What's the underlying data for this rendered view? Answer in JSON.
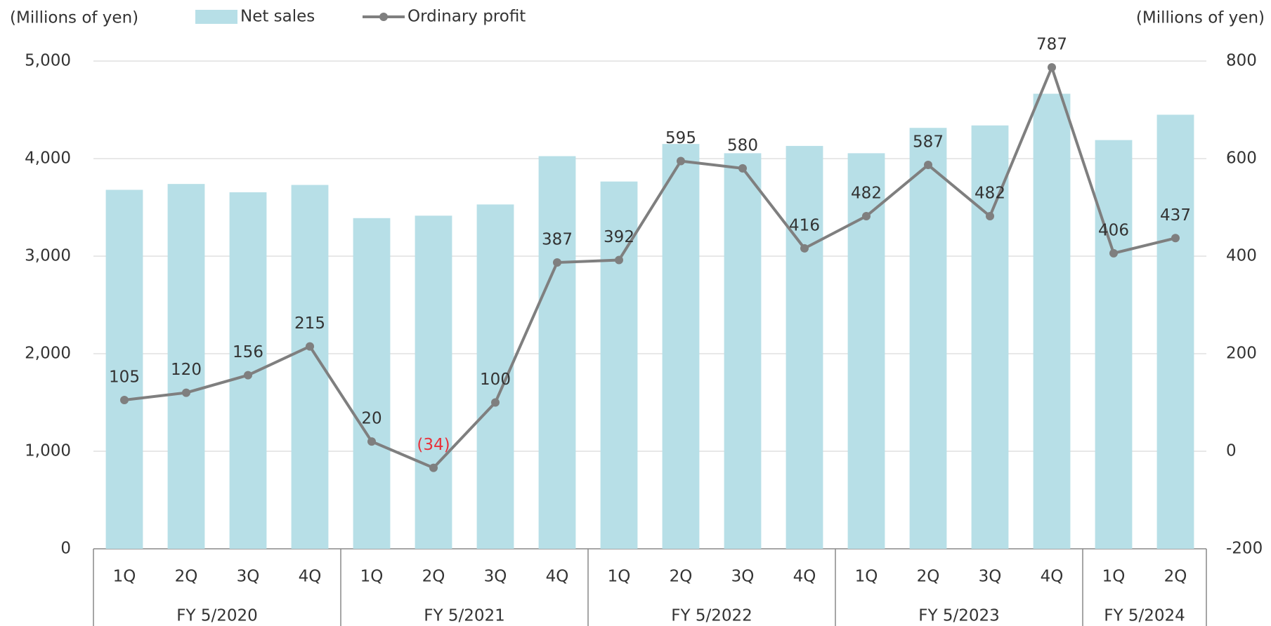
{
  "chart_data": {
    "type": "bar-line",
    "y_label": "(Millions of yen)",
    "y2_label": "(Millions of yen)",
    "categories": [
      "1Q",
      "2Q",
      "3Q",
      "4Q",
      "1Q",
      "2Q",
      "3Q",
      "4Q",
      "1Q",
      "2Q",
      "3Q",
      "4Q",
      "1Q",
      "2Q",
      "3Q",
      "4Q",
      "1Q",
      "2Q"
    ],
    "groups": [
      {
        "name": "FY 5/2020",
        "count": 4
      },
      {
        "name": "FY 5/2021",
        "count": 4
      },
      {
        "name": "FY 5/2022",
        "count": 4
      },
      {
        "name": "FY 5/2023",
        "count": 4
      },
      {
        "name": "FY 5/2024",
        "count": 2
      }
    ],
    "series": [
      {
        "name": "Net sales",
        "type": "bar",
        "color": "#b7dfe7",
        "values": [
          3680,
          3740,
          3655,
          3730,
          3390,
          3415,
          3530,
          4025,
          3765,
          4150,
          4055,
          4130,
          4055,
          4315,
          4340,
          4665,
          4190,
          4450
        ]
      },
      {
        "name": "Ordinary profit",
        "type": "line",
        "axis": "y2",
        "color": "#7f7f7f",
        "values": [
          105,
          120,
          156,
          215,
          20,
          -34,
          100,
          387,
          392,
          595,
          580,
          416,
          482,
          587,
          482,
          787,
          406,
          437
        ],
        "value_labels": [
          "105",
          "120",
          "156",
          "215",
          "20",
          "(34)",
          "100",
          "387",
          "392",
          "595",
          "580",
          "416",
          "482",
          "587",
          "482",
          "787",
          "406",
          "437"
        ],
        "negative_label_color": "#e8323c"
      }
    ],
    "ylim": [
      0,
      5000
    ],
    "yticks": [
      0,
      {
        "value": 1000,
        "label": "1,000"
      },
      {
        "value": 2000,
        "label": "2,000"
      },
      {
        "value": 3000,
        "label": "3,000"
      },
      {
        "value": 4000,
        "label": "4,000"
      },
      {
        "value": 5000,
        "label": "5,000"
      }
    ],
    "y2lim": [
      -200,
      800
    ],
    "y2ticks": [
      -200,
      0,
      200,
      400,
      600,
      800
    ],
    "grid": true
  }
}
